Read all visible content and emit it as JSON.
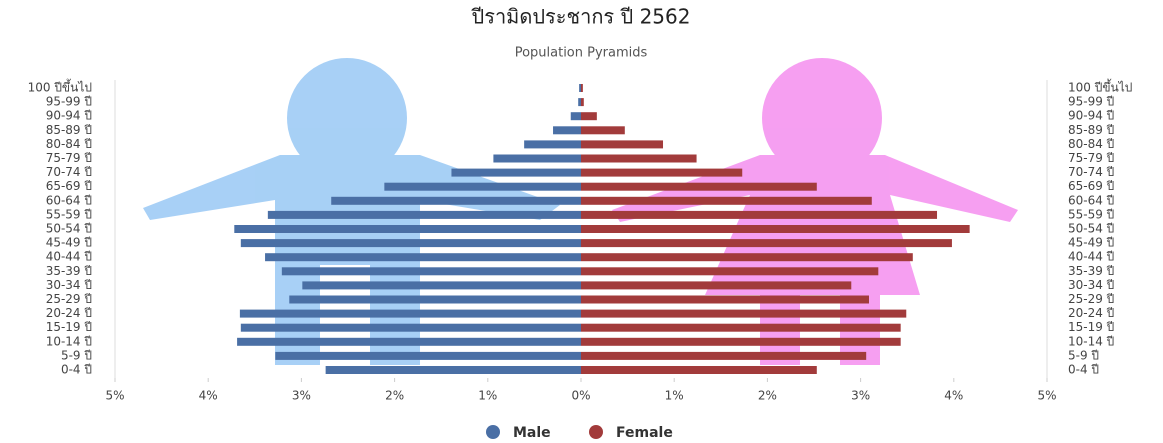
{
  "chart_data": {
    "type": "pyramid",
    "title": "ปีรามิดประชากร ปี 2562",
    "subtitle": "Population Pyramids",
    "categories": [
      "100 ปีขึ้นไป",
      "95-99 ปี",
      "90-94 ปี",
      "85-89 ปี",
      "80-84 ปี",
      "75-79 ปี",
      "70-74 ปี",
      "65-69 ปี",
      "60-64 ปี",
      "55-59 ปี",
      "50-54 ปี",
      "45-49 ปี",
      "40-44 ปี",
      "35-39 ปี",
      "30-34 ปี",
      "25-29 ปี",
      "20-24 ปี",
      "15-19 ปี",
      "10-14 ปี",
      "5-9 ปี",
      "0-4 ปี"
    ],
    "series": [
      {
        "name": "Male",
        "color": "#4a6fa5",
        "values": [
          -0.02,
          -0.03,
          -0.11,
          -0.3,
          -0.61,
          -0.94,
          -1.39,
          -2.11,
          -2.68,
          -3.36,
          -3.72,
          -3.65,
          -3.39,
          -3.21,
          -2.99,
          -3.13,
          -3.66,
          -3.65,
          -3.69,
          -3.28,
          -2.74
        ]
      },
      {
        "name": "Female",
        "color": "#a23b3b",
        "values": [
          0.02,
          0.03,
          0.17,
          0.47,
          0.88,
          1.24,
          1.73,
          2.53,
          3.12,
          3.82,
          4.17,
          3.98,
          3.56,
          3.19,
          2.9,
          3.09,
          3.49,
          3.43,
          3.43,
          3.06,
          2.53
        ]
      }
    ],
    "xlim": [
      -5,
      5
    ],
    "xticks": [
      {
        "value": -5,
        "label": "5%"
      },
      {
        "value": -4,
        "label": "4%"
      },
      {
        "value": -3,
        "label": "3%"
      },
      {
        "value": -2,
        "label": "2%"
      },
      {
        "value": -1,
        "label": "1%"
      },
      {
        "value": 0,
        "label": "0%"
      },
      {
        "value": 1,
        "label": "1%"
      },
      {
        "value": 2,
        "label": "2%"
      },
      {
        "value": 3,
        "label": "3%"
      },
      {
        "value": 4,
        "label": "4%"
      },
      {
        "value": 5,
        "label": "5%"
      }
    ]
  }
}
